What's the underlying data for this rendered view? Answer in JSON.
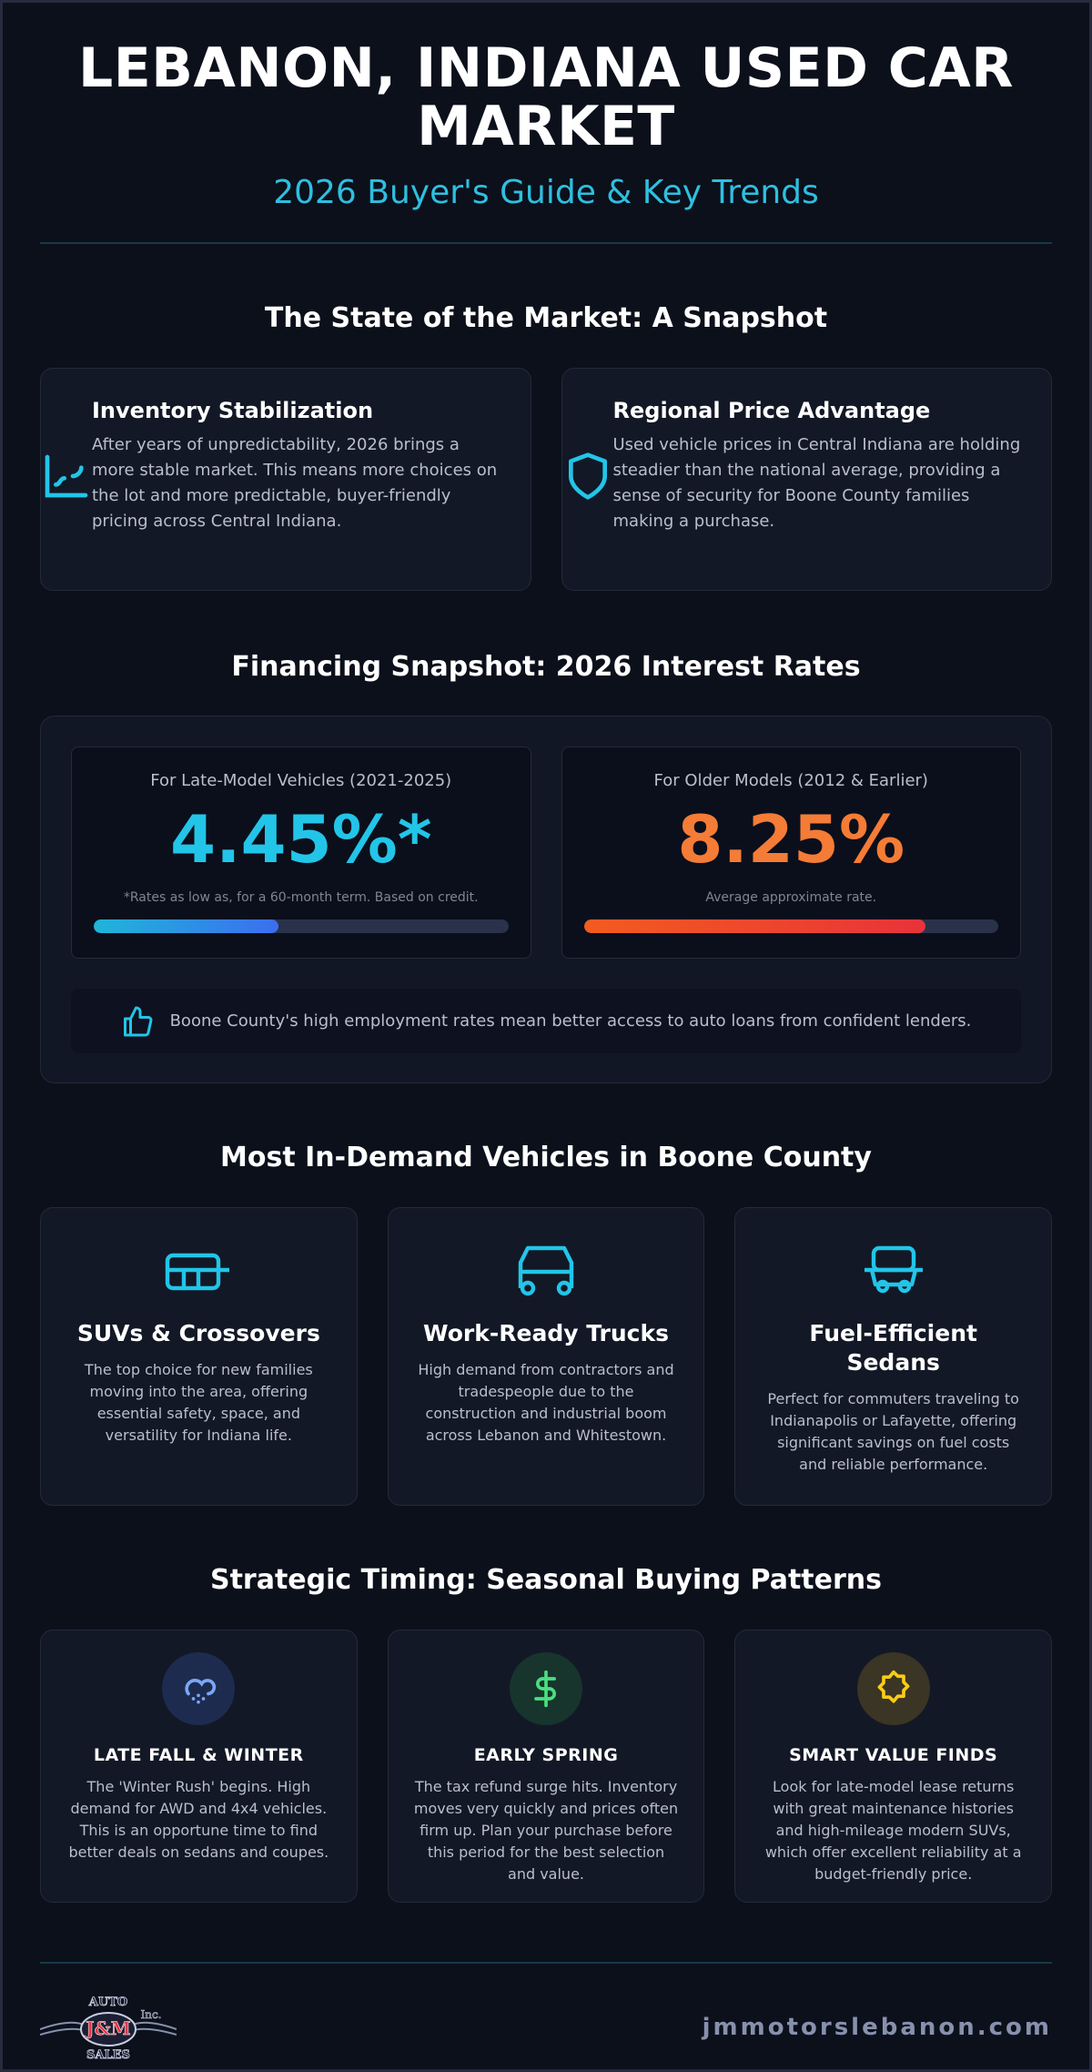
{
  "header": {
    "title": "LEBANON, INDIANA USED CAR MARKET",
    "subtitle": "2026 Buyer's Guide & Key Trends"
  },
  "market": {
    "heading": "The State of the Market: A Snapshot",
    "cards": [
      {
        "title": "Inventory Stabilization",
        "text": "After years of unpredictability, 2026 brings a more stable market. This means more choices on the lot and more predictable, buyer-friendly pricing across Central Indiana."
      },
      {
        "title": "Regional Price Advantage",
        "text": "Used vehicle prices in Central Indiana are holding steadier than the national average, providing a sense of security for Boone County families making a purchase."
      }
    ]
  },
  "financing": {
    "heading": "Financing Snapshot: 2026 Interest Rates",
    "cards": [
      {
        "label": "For Late-Model Vehicles (2021-2025)",
        "rate": "4.45%*",
        "note": "*Rates as low as, for a 60-month term. Based on credit."
      },
      {
        "label": "For Older Models (2012 & Earlier)",
        "rate": "8.25%",
        "note": "Average approximate rate."
      }
    ],
    "tip": "Boone County's high employment rates mean better access to auto loans from confident lenders."
  },
  "vehicles": {
    "heading": "Most In-Demand Vehicles in Boone County",
    "cards": [
      {
        "title": "SUVs & Crossovers",
        "text": "The top choice for new families moving into the area, offering essential safety, space, and versatility for Indiana life."
      },
      {
        "title": "Work-Ready Trucks",
        "text": "High demand from contractors and tradespeople due to the construction and industrial boom across Lebanon and Whitestown."
      },
      {
        "title": "Fuel-Efficient Sedans",
        "text": "Perfect for commuters traveling to Indianapolis or Lafayette, offering significant savings on fuel costs and reliable performance."
      }
    ]
  },
  "seasons": {
    "heading": "Strategic Timing: Seasonal Buying Patterns",
    "cards": [
      {
        "title": "LATE FALL & WINTER",
        "text": "The 'Winter Rush' begins. High demand for AWD and 4x4 vehicles. This is an opportune time to find better deals on sedans and coupes."
      },
      {
        "title": "EARLY SPRING",
        "text": "The tax refund surge hits. Inventory moves very quickly and prices often firm up. Plan your purchase before this period for the best selection and value."
      },
      {
        "title": "SMART VALUE FINDS",
        "text": "Look for late-model lease returns with great maintenance histories and high-mileage modern SUVs, which offer excellent reliability at a budget-friendly price."
      }
    ]
  },
  "footer": {
    "logo": {
      "top": "AUTO",
      "middle": "J&M",
      "bottom": "SALES",
      "suffix": "Inc."
    },
    "website": "jmmotorslebanon.com"
  }
}
